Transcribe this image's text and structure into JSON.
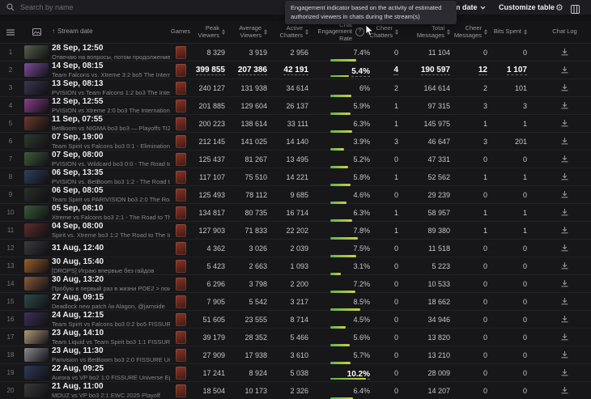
{
  "topbar": {
    "search_placeholder": "Search by name",
    "stream_date_label": "Stream date",
    "customize_label": "Customize table"
  },
  "tooltip": {
    "text": "Engagement indicator based on the activity of estimated authorized viewers in chats during the stream(s)"
  },
  "table": {
    "headers": {
      "sort_arrow": "↑",
      "stream_date": "Stream date",
      "games": "Games",
      "peak": "Peak Viewers",
      "avg": "Average Viewers",
      "active": "Active Chatters",
      "engagement": "Chat Engagement Rate",
      "help": "?",
      "cheer_chatters": "Cheer Chatters",
      "total_messages": "Total Messages",
      "cheer_messages": "Cheer Messages",
      "bits": "Bits Spent",
      "chat_log": "Chat Log"
    },
    "rows": [
      {
        "n": "1",
        "date": "28 Sep, 12:50",
        "title": "Отвечаю на вопросы, потом продолжение на...",
        "peak": "8 329",
        "avg": "3 919",
        "active": "2 956",
        "eng": "7.4%",
        "pct": 7.4,
        "cheer": "0",
        "total": "11 104",
        "cmsg": "0",
        "bits": "0",
        "thumb": "#55604a"
      },
      {
        "n": "2",
        "date": "14 Sep, 08:15",
        "title": "Team Falcons vs. Xtreme 3:2 bo5 The Internatio...",
        "peak": "399 855",
        "avg": "207 386",
        "active": "42 191",
        "eng": "5.4%",
        "pct": 5.4,
        "cheer": "4",
        "total": "190 597",
        "cmsg": "12",
        "bits": "1 107",
        "thumb": "#7a4f9a",
        "record": true
      },
      {
        "n": "3",
        "date": "13 Sep, 08:13",
        "title": "PVISION vs Team Falcons 1:2 bo3 The Internatio...",
        "peak": "240 127",
        "avg": "131 938",
        "active": "34 614",
        "eng": "6%",
        "pct": 6,
        "cheer": "2",
        "total": "164 614",
        "cmsg": "2",
        "bits": "101",
        "thumb": "#3a3550"
      },
      {
        "n": "4",
        "date": "12 Sep, 12:55",
        "title": "PVISION vs Xtreme 2:0 bo3 The Internationa...",
        "peak": "201 885",
        "avg": "129 604",
        "active": "26 137",
        "eng": "5.9%",
        "pct": 5.9,
        "cheer": "1",
        "total": "97 315",
        "cmsg": "3",
        "bits": "3",
        "thumb": "#8a3f8a"
      },
      {
        "n": "5",
        "date": "11 Sep, 07:55",
        "title": "BetBoom vs NIGMA bo3 bo3 — Playoffs TI20...",
        "peak": "200 223",
        "avg": "138 614",
        "active": "33 111",
        "eng": "6.3%",
        "pct": 6.3,
        "cheer": "1",
        "total": "145 975",
        "cmsg": "1",
        "bits": "1",
        "thumb": "#6a3a2a"
      },
      {
        "n": "6",
        "date": "07 Sep, 19:00",
        "title": "Team Spirit vs Falcons bo3 0:1 - Elimination ro...",
        "peak": "212 145",
        "avg": "141 025",
        "active": "14 140",
        "eng": "3.9%",
        "pct": 3.9,
        "cheer": "3",
        "total": "46 647",
        "cmsg": "3",
        "bits": "201",
        "thumb": "#2f3a2f"
      },
      {
        "n": "7",
        "date": "07 Sep, 08:00",
        "title": "PVISION vs. Wildcard bo3 0:0 - The Road to Th...",
        "peak": "125 437",
        "avg": "81 267",
        "active": "13 495",
        "eng": "5.2%",
        "pct": 5.2,
        "cheer": "0",
        "total": "47 331",
        "cmsg": "0",
        "bits": "0",
        "thumb": "#3f5a3a"
      },
      {
        "n": "8",
        "date": "06 Sep, 13:35",
        "title": "PVISION vs. BetBoom bo3 1:2 - The Road to Th...",
        "peak": "117 107",
        "avg": "75 510",
        "active": "14 221",
        "eng": "5.8%",
        "pct": 5.8,
        "cheer": "1",
        "total": "52 562",
        "cmsg": "1",
        "bits": "1",
        "thumb": "#2f3f5a"
      },
      {
        "n": "9",
        "date": "06 Sep, 08:05",
        "title": "Team Spirit vs PARIVISION bo3 2:0 The Road t...",
        "peak": "125 493",
        "avg": "78 112",
        "active": "9 685",
        "eng": "4.6%",
        "pct": 4.6,
        "cheer": "0",
        "total": "29 239",
        "cmsg": "0",
        "bits": "0",
        "thumb": "#2a2f2a"
      },
      {
        "n": "10",
        "date": "05 Sep, 08:10",
        "title": "Xtreme vs Falcons bo3 2:1 - The Road to The I...",
        "peak": "134 817",
        "avg": "80 735",
        "active": "16 714",
        "eng": "6.3%",
        "pct": 6.3,
        "cheer": "1",
        "total": "58 957",
        "cmsg": "1",
        "bits": "1",
        "thumb": "#3a5a3a"
      },
      {
        "n": "11",
        "date": "04 Sep, 08:00",
        "title": "Spirit vs. Xtreme bo3 1:2 The Road to The Inte...",
        "peak": "127 903",
        "avg": "71 833",
        "active": "22 202",
        "eng": "7.8%",
        "pct": 7.8,
        "cheer": "1",
        "total": "89 380",
        "cmsg": "1",
        "bits": "1",
        "thumb": "#5a2f2a"
      },
      {
        "n": "12",
        "date": "31 Aug, 12:40",
        "title": "",
        "peak": "4 362",
        "avg": "3 026",
        "active": "2 039",
        "eng": "7.5%",
        "pct": 7.5,
        "cheer": "0",
        "total": "11 518",
        "cmsg": "0",
        "bits": "0",
        "thumb": "#3a3a3f"
      },
      {
        "n": "13",
        "date": "30 Aug, 15:40",
        "title": "[DROPS] Играю впервые без гайдов",
        "peak": "5 423",
        "avg": "2 663",
        "active": "1 093",
        "eng": "3.1%",
        "pct": 3.1,
        "cheer": "0",
        "total": "5 223",
        "cmsg": "0",
        "bits": "0",
        "thumb": "#9a5f2a"
      },
      {
        "n": "14",
        "date": "30 Aug, 13:20",
        "title": "Пробую в первый раз в жизни POE2 > поигра...",
        "peak": "6 296",
        "avg": "3 798",
        "active": "2 200",
        "eng": "7.2%",
        "pct": 7.2,
        "cheer": "0",
        "total": "10 533",
        "cmsg": "0",
        "bits": "0",
        "thumb": "#8a5a3a"
      },
      {
        "n": "15",
        "date": "27 Aug, 09:15",
        "title": "Deadlock new patch /w Alagon, @jamside",
        "peak": "7 905",
        "avg": "5 542",
        "active": "3 217",
        "eng": "8.5%",
        "pct": 8.5,
        "cheer": "0",
        "total": "18 662",
        "cmsg": "0",
        "bits": "0",
        "thumb": "#2f4a4a"
      },
      {
        "n": "16",
        "date": "24 Aug, 12:15",
        "title": "Team Spirit vs Falcons bo3 0:2 bo5 FISSURE U...",
        "peak": "51 605",
        "avg": "23 555",
        "active": "8 714",
        "eng": "4.5%",
        "pct": 4.5,
        "cheer": "0",
        "total": "34 946",
        "cmsg": "0",
        "bits": "0",
        "thumb": "#3f2f5a"
      },
      {
        "n": "17",
        "date": "23 Aug, 14:10",
        "title": "Team Liquid vs Team Spirit bo3 1:1 FISSURE U...",
        "peak": "39 179",
        "avg": "28 352",
        "active": "5 466",
        "eng": "5.6%",
        "pct": 5.6,
        "cheer": "0",
        "total": "13 820",
        "cmsg": "0",
        "bits": "0",
        "thumb": "#b09a7a"
      },
      {
        "n": "18",
        "date": "23 Aug, 11:30",
        "title": "Parivision vs BetBoom bo3 2:0 FISSURE Unive...",
        "peak": "27 909",
        "avg": "17 938",
        "active": "3 610",
        "eng": "5.7%",
        "pct": 5.7,
        "cheer": "0",
        "total": "13 210",
        "cmsg": "0",
        "bits": "0",
        "thumb": "#8a8a8f"
      },
      {
        "n": "19",
        "date": "22 Aug, 09:25",
        "title": "Aurora vs VP bo2 1:0 FISSURE Universe Ep 6...",
        "peak": "17 241",
        "avg": "8 924",
        "active": "5 038",
        "eng": "10.2%",
        "pct": 10.2,
        "cheer": "0",
        "total": "28 009",
        "cmsg": "0",
        "bits": "0",
        "thumb": "#2f3a5a",
        "eng_record": true
      },
      {
        "n": "20",
        "date": "21 Aug, 11:00",
        "title": "MOUZ vs VP bo3 2:1 EWC 2025 Playoff",
        "peak": "18 504",
        "avg": "10 173",
        "active": "2 326",
        "eng": "6.4%",
        "pct": 6.4,
        "cheer": "0",
        "total": "14 207",
        "cmsg": "0",
        "bits": "0",
        "thumb": "#3a3a3a"
      }
    ]
  },
  "colors": {
    "bar_gradient": [
      "#64b054",
      "#c9d243"
    ],
    "record_underline": "#616168",
    "row_bg": "#17171a",
    "topbar_bg": "#1d1d21"
  }
}
